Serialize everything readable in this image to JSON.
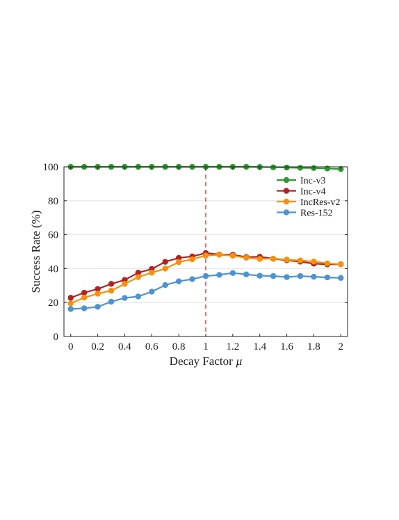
{
  "chart_data": {
    "type": "line",
    "title": "",
    "xlabel": "Decay Factor",
    "xlabel_symbol": "μ",
    "ylabel": "Success Rate (%)",
    "xlim": [
      -0.05,
      2.05
    ],
    "ylim": [
      0,
      100
    ],
    "xticks": [
      0,
      0.2,
      0.4,
      0.6,
      0.8,
      1,
      1.2,
      1.4,
      1.6,
      1.8,
      2
    ],
    "xtick_labels": [
      "0",
      "0.2",
      "0.4",
      "0.6",
      "0.8",
      "1",
      "1.2",
      "1.4",
      "1.6",
      "1.8",
      "2"
    ],
    "yticks": [
      0,
      20,
      40,
      60,
      80,
      100
    ],
    "ytick_labels": [
      "0",
      "20",
      "40",
      "60",
      "80",
      "100"
    ],
    "grid": "horizontal",
    "legend_position": "top-right",
    "reference_line": {
      "x": 1.0,
      "color": "#d62728",
      "style": "dashed"
    },
    "x": [
      0,
      0.1,
      0.2,
      0.3,
      0.4,
      0.5,
      0.6,
      0.7,
      0.8,
      0.9,
      1.0,
      1.1,
      1.2,
      1.3,
      1.4,
      1.5,
      1.6,
      1.7,
      1.8,
      1.9,
      2.0
    ],
    "series": [
      {
        "name": "Inc-v3",
        "color": "#2e9a2e",
        "values": [
          100,
          100,
          100,
          100,
          100,
          100,
          100,
          100,
          100,
          100,
          100,
          100,
          100,
          100,
          99.9,
          99.7,
          99.6,
          99.4,
          99.3,
          99.0,
          98.7
        ]
      },
      {
        "name": "Inc-v4",
        "color": "#b22222",
        "values": [
          22.8,
          25.8,
          28.0,
          31.0,
          33.3,
          37.6,
          39.8,
          44.0,
          46.3,
          47.2,
          49.2,
          48.3,
          48.2,
          46.8,
          47.0,
          45.8,
          44.9,
          44.1,
          42.9,
          42.5,
          42.6
        ]
      },
      {
        "name": "IncRes-v2",
        "color": "#f7900a",
        "values": [
          19.5,
          22.9,
          25.2,
          27.0,
          31.0,
          35.0,
          37.6,
          40.0,
          43.8,
          45.5,
          47.7,
          48.2,
          47.6,
          46.4,
          45.7,
          45.9,
          45.3,
          44.8,
          44.2,
          43.1,
          42.6
        ]
      },
      {
        "name": "Res-152",
        "color": "#4d93d4",
        "values": [
          16.2,
          16.6,
          17.5,
          20.5,
          22.7,
          23.6,
          26.4,
          30.3,
          32.5,
          33.8,
          35.6,
          36.3,
          37.4,
          36.6,
          35.8,
          35.6,
          35.0,
          35.6,
          35.2,
          34.8,
          34.5
        ]
      }
    ]
  }
}
